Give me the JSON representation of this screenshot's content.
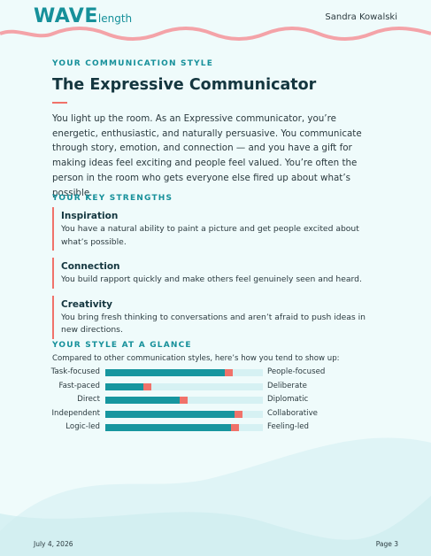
{
  "header": {
    "logo_main": "WAVE",
    "logo_sub": "length",
    "user": "Sandra Kowalski"
  },
  "section_label": "YOUR COMMUNICATION STYLE",
  "title": "The Expressive Communicator",
  "intro": "You light up the room. As an Expressive communicator, you’re energetic, enthusiastic, and naturally persuasive. You communicate through story, emotion, and connection — and you have a gift for making ideas feel exciting and people feel valued. You’re often the person in the room who gets everyone else fired up about what’s possible.",
  "strengths": {
    "heading": "YOUR KEY STRENGTHS",
    "items": [
      {
        "title": "Inspiration",
        "text": "You have a natural ability to paint a picture and get people excited about what’s possible."
      },
      {
        "title": "Connection",
        "text": "You build rapport quickly and make others feel genuinely seen and heard."
      },
      {
        "title": "Creativity",
        "text": "You bring fresh thinking to conversations and aren’t afraid to push ideas in new directions."
      }
    ]
  },
  "glance": {
    "heading": "YOUR STYLE AT A GLANCE",
    "intro": "Compared to other communication styles, here’s how you tend to show up:",
    "xlim": [
      0,
      100
    ],
    "rows": [
      {
        "left": "Task-focused",
        "right": "People-focused",
        "value": 76
      },
      {
        "left": "Fast-paced",
        "right": "Deliberate",
        "value": 24
      },
      {
        "left": "Direct",
        "right": "Diplomatic",
        "value": 47
      },
      {
        "left": "Independent",
        "right": "Collaborative",
        "value": 82
      },
      {
        "left": "Logic-led",
        "right": "Feeling-led",
        "value": 80
      }
    ]
  },
  "footer": {
    "date": "July 4, 2026",
    "page": "Page 3"
  }
}
